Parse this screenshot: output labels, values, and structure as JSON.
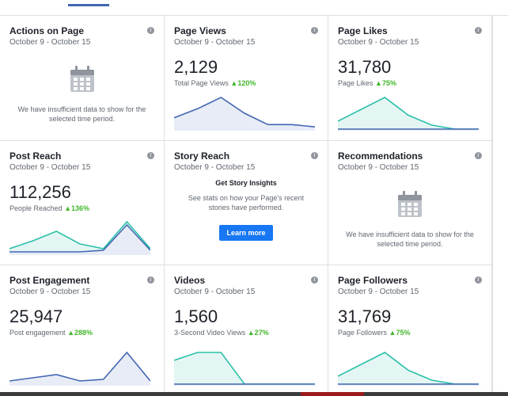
{
  "colors": {
    "blue_line": "#4267b2",
    "teal_line": "#2bc0a9",
    "blue_fill": "#e8ecf7",
    "teal_fill": "#e4f6f3",
    "change_green": "#42b72a"
  },
  "cards": [
    {
      "title": "Actions on Page",
      "date_range": "October 9 - October 15",
      "empty_message": "We have insufficient data to show for the selected time period."
    },
    {
      "title": "Page Views",
      "date_range": "October 9 - October 15",
      "metric": "2,129",
      "metric_label": "Total Page Views",
      "change": "▲120%",
      "sparkline": {
        "series": [
          {
            "name": "",
            "color": "blue",
            "values": [
              5,
              9,
              14,
              7,
              2,
              2,
              1
            ]
          }
        ]
      }
    },
    {
      "title": "Page Likes",
      "date_range": "October 9 - October 15",
      "metric": "31,780",
      "metric_label": "Page Likes",
      "change": "▲75%",
      "sparkline": {
        "series": [
          {
            "name": "",
            "color": "teal",
            "values": [
              4,
              10,
              16,
              7,
              2,
              0,
              0
            ]
          },
          {
            "name": "",
            "color": "blue",
            "values": [
              0,
              0,
              0,
              0,
              0,
              0,
              0
            ]
          }
        ]
      }
    },
    {
      "title": "Post Reach",
      "date_range": "October 9 - October 15",
      "metric": "112,256",
      "metric_label": "People Reached",
      "change": "▲136%",
      "sparkline": {
        "series": [
          {
            "name": "",
            "color": "teal",
            "values": [
              3,
              8,
              14,
              6,
              3,
              20,
              3
            ]
          },
          {
            "name": "",
            "color": "blue",
            "values": [
              1,
              1,
              1,
              1,
              2,
              18,
              2
            ]
          }
        ]
      }
    },
    {
      "title": "Story Reach",
      "date_range": "October 9 - October 15",
      "insights_heading": "Get Story Insights",
      "insights_text": "See stats on how your Page's recent stories have performed.",
      "button_label": "Learn more"
    },
    {
      "title": "Recommendations",
      "date_range": "October 9 - October 15",
      "empty_message": "We have insufficient data to show for the selected time period."
    },
    {
      "title": "Post Engagement",
      "date_range": "October 9 - October 15",
      "metric": "25,947",
      "metric_label": "Post engagement",
      "change": "▲288%",
      "sparkline": {
        "series": [
          {
            "name": "",
            "color": "blue",
            "values": [
              2,
              4,
              6,
              2,
              3,
              20,
              2
            ]
          }
        ]
      }
    },
    {
      "title": "Videos",
      "date_range": "October 9 - October 15",
      "metric": "1,560",
      "metric_label": "3-Second Video Views",
      "change": "▲27%",
      "sparkline": {
        "series": [
          {
            "name": "",
            "color": "teal",
            "values": [
              9,
              12,
              12,
              0,
              0,
              0,
              0
            ]
          },
          {
            "name": "",
            "color": "blue",
            "values": [
              0,
              0,
              0,
              0,
              0,
              0,
              0
            ]
          }
        ]
      }
    },
    {
      "title": "Page Followers",
      "date_range": "October 9 - October 15",
      "metric": "31,769",
      "metric_label": "Page Followers",
      "change": "▲75%",
      "sparkline": {
        "series": [
          {
            "name": "",
            "color": "teal",
            "values": [
              4,
              10,
              16,
              7,
              2,
              0,
              0
            ]
          },
          {
            "name": "",
            "color": "blue",
            "values": [
              0,
              0,
              0,
              0,
              0,
              0,
              0
            ]
          }
        ]
      }
    }
  ]
}
